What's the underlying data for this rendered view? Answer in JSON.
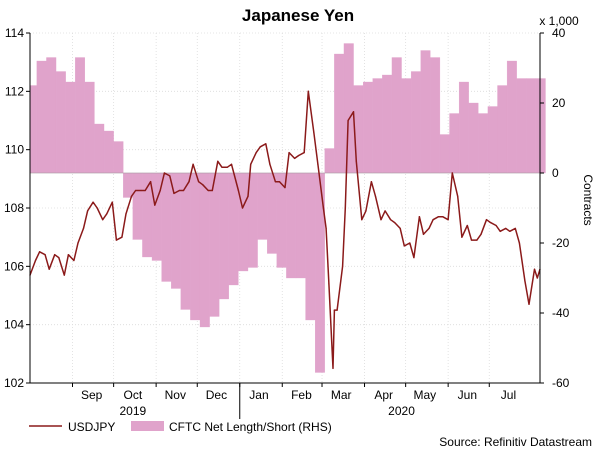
{
  "chart_data": {
    "type": "line",
    "title": "Japanese Yen",
    "left_axis": {
      "ylim": [
        102,
        114
      ],
      "ticks": [
        "102",
        "104",
        "106",
        "108",
        "110",
        "112",
        "114"
      ]
    },
    "right_axis": {
      "label": "Contracts",
      "multiplier": "x 1,000",
      "ylim": [
        -60,
        40
      ],
      "ticks": [
        "-60",
        "-40",
        "-20",
        "0",
        "20",
        "40"
      ]
    },
    "x_axis": {
      "start": "2019-08-01",
      "end": "2020-08-07",
      "month_ticks": [
        "Sep",
        "Oct",
        "Nov",
        "Dec",
        "Jan",
        "Feb",
        "Mar",
        "Apr",
        "May",
        "Jun",
        "Jul"
      ],
      "month_dates": [
        "2019-09-15",
        "2019-10-15",
        "2019-11-15",
        "2019-12-15",
        "2020-01-15",
        "2020-02-15",
        "2020-03-15",
        "2020-04-15",
        "2020-05-15",
        "2020-06-15",
        "2020-07-15"
      ],
      "year_labels": [
        {
          "label": "2019",
          "date": "2019-10-15"
        },
        {
          "label": "2020",
          "date": "2020-04-28"
        }
      ]
    },
    "grid": true,
    "legend_placement": "bottom-left",
    "series": [
      {
        "name": "USDJPY",
        "axis": "left",
        "color": "#8b1a1a",
        "points": [
          [
            "2019-08-01",
            105.7
          ],
          [
            "2019-08-05",
            106.2
          ],
          [
            "2019-08-08",
            106.5
          ],
          [
            "2019-08-12",
            106.4
          ],
          [
            "2019-08-15",
            105.9
          ],
          [
            "2019-08-19",
            106.4
          ],
          [
            "2019-08-22",
            106.3
          ],
          [
            "2019-08-26",
            105.7
          ],
          [
            "2019-08-29",
            106.4
          ],
          [
            "2019-09-02",
            106.2
          ],
          [
            "2019-09-05",
            106.8
          ],
          [
            "2019-09-09",
            107.3
          ],
          [
            "2019-09-12",
            107.9
          ],
          [
            "2019-09-16",
            108.2
          ],
          [
            "2019-09-19",
            108.0
          ],
          [
            "2019-09-23",
            107.6
          ],
          [
            "2019-09-26",
            107.8
          ],
          [
            "2019-09-30",
            108.2
          ],
          [
            "2019-10-03",
            106.9
          ],
          [
            "2019-10-07",
            107.0
          ],
          [
            "2019-10-10",
            107.8
          ],
          [
            "2019-10-14",
            108.4
          ],
          [
            "2019-10-17",
            108.6
          ],
          [
            "2019-10-21",
            108.6
          ],
          [
            "2019-10-24",
            108.6
          ],
          [
            "2019-10-28",
            108.9
          ],
          [
            "2019-10-31",
            108.1
          ],
          [
            "2019-11-04",
            108.6
          ],
          [
            "2019-11-07",
            109.2
          ],
          [
            "2019-11-11",
            109.1
          ],
          [
            "2019-11-14",
            108.5
          ],
          [
            "2019-11-18",
            108.6
          ],
          [
            "2019-11-21",
            108.6
          ],
          [
            "2019-11-25",
            108.9
          ],
          [
            "2019-11-28",
            109.5
          ],
          [
            "2019-12-02",
            108.9
          ],
          [
            "2019-12-05",
            108.8
          ],
          [
            "2019-12-09",
            108.6
          ],
          [
            "2019-12-12",
            108.6
          ],
          [
            "2019-12-16",
            109.6
          ],
          [
            "2019-12-19",
            109.4
          ],
          [
            "2019-12-23",
            109.4
          ],
          [
            "2019-12-26",
            109.5
          ],
          [
            "2019-12-31",
            108.6
          ],
          [
            "2020-01-03",
            108.0
          ],
          [
            "2020-01-07",
            108.4
          ],
          [
            "2020-01-09",
            109.5
          ],
          [
            "2020-01-13",
            109.9
          ],
          [
            "2020-01-16",
            110.1
          ],
          [
            "2020-01-20",
            110.2
          ],
          [
            "2020-01-23",
            109.5
          ],
          [
            "2020-01-27",
            108.9
          ],
          [
            "2020-01-30",
            108.9
          ],
          [
            "2020-02-03",
            108.7
          ],
          [
            "2020-02-06",
            109.9
          ],
          [
            "2020-02-10",
            109.7
          ],
          [
            "2020-02-13",
            109.8
          ],
          [
            "2020-02-17",
            109.9
          ],
          [
            "2020-02-20",
            112.0
          ],
          [
            "2020-02-24",
            110.6
          ],
          [
            "2020-02-27",
            109.5
          ],
          [
            "2020-03-02",
            108.0
          ],
          [
            "2020-03-04",
            107.3
          ],
          [
            "2020-03-06",
            105.4
          ],
          [
            "2020-03-09",
            102.5
          ],
          [
            "2020-03-10",
            104.5
          ],
          [
            "2020-03-12",
            104.5
          ],
          [
            "2020-03-16",
            106.0
          ],
          [
            "2020-03-18",
            108.0
          ],
          [
            "2020-03-20",
            111.0
          ],
          [
            "2020-03-24",
            111.3
          ],
          [
            "2020-03-26",
            109.6
          ],
          [
            "2020-03-30",
            107.6
          ],
          [
            "2020-04-02",
            107.9
          ],
          [
            "2020-04-06",
            108.9
          ],
          [
            "2020-04-09",
            108.4
          ],
          [
            "2020-04-13",
            107.6
          ],
          [
            "2020-04-16",
            107.9
          ],
          [
            "2020-04-20",
            107.6
          ],
          [
            "2020-04-23",
            107.5
          ],
          [
            "2020-04-27",
            107.3
          ],
          [
            "2020-04-30",
            106.7
          ],
          [
            "2020-05-04",
            106.8
          ],
          [
            "2020-05-07",
            106.3
          ],
          [
            "2020-05-11",
            107.7
          ],
          [
            "2020-05-14",
            107.1
          ],
          [
            "2020-05-18",
            107.3
          ],
          [
            "2020-05-21",
            107.6
          ],
          [
            "2020-05-25",
            107.7
          ],
          [
            "2020-05-28",
            107.7
          ],
          [
            "2020-06-01",
            107.6
          ],
          [
            "2020-06-04",
            109.2
          ],
          [
            "2020-06-08",
            108.4
          ],
          [
            "2020-06-11",
            107.0
          ],
          [
            "2020-06-15",
            107.4
          ],
          [
            "2020-06-18",
            106.9
          ],
          [
            "2020-06-22",
            106.9
          ],
          [
            "2020-06-25",
            107.1
          ],
          [
            "2020-06-29",
            107.6
          ],
          [
            "2020-07-02",
            107.5
          ],
          [
            "2020-07-06",
            107.4
          ],
          [
            "2020-07-09",
            107.2
          ],
          [
            "2020-07-13",
            107.3
          ],
          [
            "2020-07-16",
            107.2
          ],
          [
            "2020-07-20",
            107.3
          ],
          [
            "2020-07-23",
            106.8
          ],
          [
            "2020-07-27",
            105.5
          ],
          [
            "2020-07-30",
            104.7
          ],
          [
            "2020-08-03",
            105.9
          ],
          [
            "2020-08-05",
            105.6
          ],
          [
            "2020-08-07",
            105.9
          ]
        ]
      },
      {
        "name": "CFTC Net Length/Short (RHS)",
        "axis": "right",
        "color": "#e0a3cb",
        "points": [
          [
            "2019-08-01",
            25
          ],
          [
            "2019-08-06",
            32
          ],
          [
            "2019-08-13",
            33
          ],
          [
            "2019-08-20",
            29
          ],
          [
            "2019-08-27",
            26
          ],
          [
            "2019-09-03",
            33
          ],
          [
            "2019-09-10",
            26
          ],
          [
            "2019-09-17",
            14
          ],
          [
            "2019-09-24",
            12
          ],
          [
            "2019-10-01",
            9
          ],
          [
            "2019-10-08",
            -7
          ],
          [
            "2019-10-15",
            -19
          ],
          [
            "2019-10-22",
            -24
          ],
          [
            "2019-10-29",
            -25
          ],
          [
            "2019-11-05",
            -31
          ],
          [
            "2019-11-12",
            -33
          ],
          [
            "2019-11-19",
            -39
          ],
          [
            "2019-11-26",
            -42
          ],
          [
            "2019-12-03",
            -44
          ],
          [
            "2019-12-10",
            -41
          ],
          [
            "2019-12-17",
            -36
          ],
          [
            "2019-12-24",
            -32
          ],
          [
            "2019-12-31",
            -28
          ],
          [
            "2020-01-07",
            -27
          ],
          [
            "2020-01-14",
            -19
          ],
          [
            "2020-01-21",
            -23
          ],
          [
            "2020-01-28",
            -27
          ],
          [
            "2020-02-04",
            -30
          ],
          [
            "2020-02-11",
            -30
          ],
          [
            "2020-02-18",
            -42
          ],
          [
            "2020-02-25",
            -57
          ],
          [
            "2020-03-03",
            7
          ],
          [
            "2020-03-10",
            34
          ],
          [
            "2020-03-17",
            37
          ],
          [
            "2020-03-24",
            25
          ],
          [
            "2020-03-31",
            26
          ],
          [
            "2020-04-07",
            27
          ],
          [
            "2020-04-14",
            28
          ],
          [
            "2020-04-21",
            33
          ],
          [
            "2020-04-28",
            27
          ],
          [
            "2020-05-05",
            29
          ],
          [
            "2020-05-12",
            35
          ],
          [
            "2020-05-19",
            33
          ],
          [
            "2020-05-26",
            11
          ],
          [
            "2020-06-02",
            17
          ],
          [
            "2020-06-09",
            26
          ],
          [
            "2020-06-16",
            20
          ],
          [
            "2020-06-23",
            17
          ],
          [
            "2020-06-30",
            19
          ],
          [
            "2020-07-07",
            25
          ],
          [
            "2020-07-14",
            32
          ],
          [
            "2020-07-21",
            27
          ],
          [
            "2020-07-28",
            27
          ],
          [
            "2020-08-04",
            27
          ]
        ]
      }
    ],
    "source": "Source: Refinitiv Datastream"
  }
}
